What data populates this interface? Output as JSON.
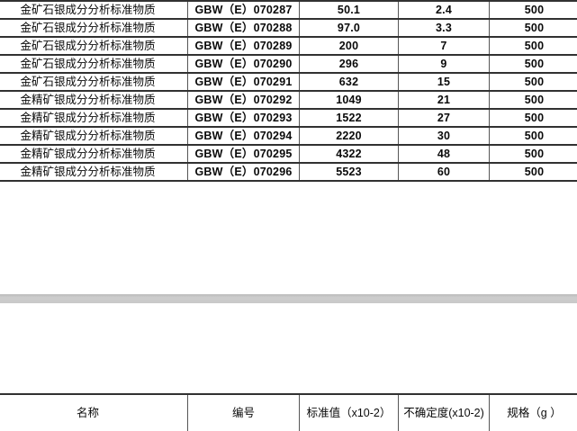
{
  "colors": {
    "page_background": "#ffffff",
    "separator_gray": "#c9c9c9",
    "border_dark": "#313131",
    "border_vertical": "#565656",
    "text": "#0a0a0a"
  },
  "standards_table": {
    "rows": [
      {
        "name": "金矿石银成分分析标准物质",
        "code": "GBW（E）070287",
        "value": "50.1",
        "uncertainty": "2.4",
        "spec": "500"
      },
      {
        "name": "金矿石银成分分析标准物质",
        "code": "GBW（E）070288",
        "value": "97.0",
        "uncertainty": "3.3",
        "spec": "500"
      },
      {
        "name": "金矿石银成分分析标准物质",
        "code": "GBW（E）070289",
        "value": "200",
        "uncertainty": "7",
        "spec": "500"
      },
      {
        "name": "金矿石银成分分析标准物质",
        "code": "GBW（E）070290",
        "value": "296",
        "uncertainty": "9",
        "spec": "500"
      },
      {
        "name": "金矿石银成分分析标准物质",
        "code": "GBW（E）070291",
        "value": "632",
        "uncertainty": "15",
        "spec": "500"
      },
      {
        "name": "金精矿银成分分析标准物质",
        "code": "GBW（E）070292",
        "value": "1049",
        "uncertainty": "21",
        "spec": "500"
      },
      {
        "name": "金精矿银成分分析标准物质",
        "code": "GBW（E）070293",
        "value": "1522",
        "uncertainty": "27",
        "spec": "500"
      },
      {
        "name": "金精矿银成分分析标准物质",
        "code": "GBW（E）070294",
        "value": "2220",
        "uncertainty": "30",
        "spec": "500"
      },
      {
        "name": "金精矿银成分分析标准物质",
        "code": "GBW（E）070295",
        "value": "4322",
        "uncertainty": "48",
        "spec": "500"
      },
      {
        "name": "金精矿银成分分析标准物质",
        "code": "GBW（E）070296",
        "value": "5523",
        "uncertainty": "60",
        "spec": "500"
      }
    ]
  },
  "next_table_header": {
    "name_label": "名称",
    "code_label": "编号",
    "value_label": "标准值（x10-2）",
    "uncertainty_label": "不确定度(x10-2)",
    "spec_label": "规格（g ）"
  }
}
